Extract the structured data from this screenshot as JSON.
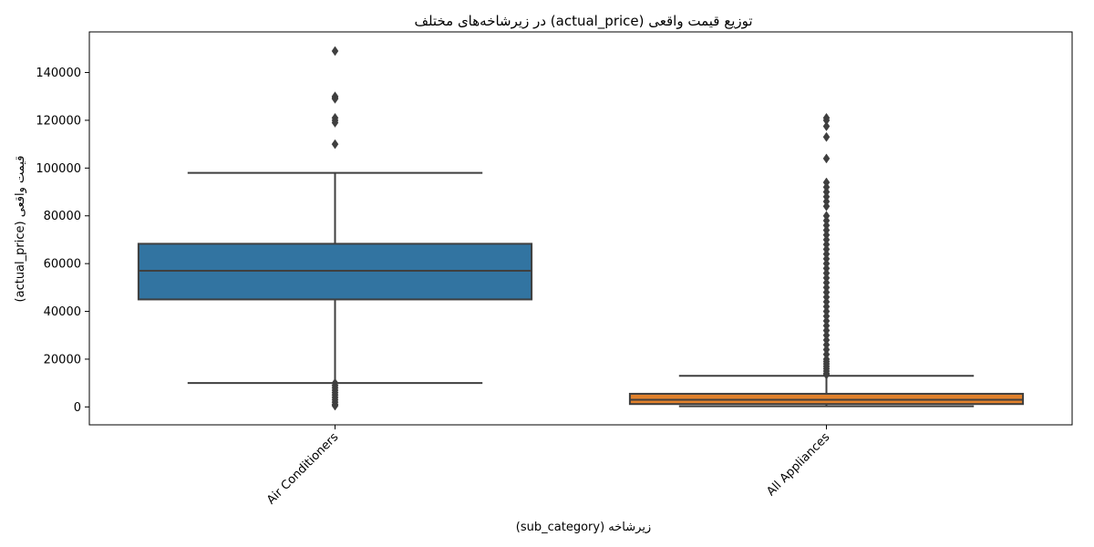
{
  "chart_data": {
    "type": "box",
    "title": "توزیع قیمت واقعی (actual_price) در زیرشاخه‌های مختلف",
    "xlabel": "زیرشاخه (sub_category)",
    "ylabel": "قیمت واقعی (actual_price)",
    "ylim": [
      -7500,
      157000
    ],
    "yticks": [
      0,
      20000,
      40000,
      60000,
      80000,
      100000,
      120000,
      140000
    ],
    "grid": false,
    "categories": [
      "Air Conditioners",
      "All Appliances"
    ],
    "series": [
      {
        "category": "Air Conditioners",
        "color": "#3274a1",
        "whisker_low": 10000,
        "q1": 45000,
        "median": 57000,
        "q3": 68300,
        "whisker_high": 98000,
        "outliers": [
          149000,
          130000,
          129500,
          129000,
          121000,
          120000,
          119000,
          110000,
          10000,
          9000,
          8000,
          7000,
          6000,
          5000,
          4000,
          3000,
          2000,
          1000,
          500
        ]
      },
      {
        "category": "All Appliances",
        "color": "#e1812c",
        "whisker_low": 300,
        "q1": 1200,
        "median": 3000,
        "q3": 5500,
        "whisker_high": 13000,
        "outliers": [
          121000,
          120000,
          117500,
          113000,
          104000,
          94000,
          92000,
          90000,
          88000,
          86000,
          84000,
          80000,
          78000,
          76000,
          74000,
          72000,
          70000,
          68000,
          66000,
          64000,
          62000,
          60000,
          58000,
          56000,
          54000,
          52000,
          50000,
          48000,
          46000,
          44000,
          42000,
          40000,
          38000,
          36000,
          34000,
          32000,
          30000,
          28000,
          26000,
          24000,
          22000,
          20000,
          19000,
          18000,
          17000,
          16000,
          15000,
          14000,
          13500
        ]
      }
    ]
  }
}
